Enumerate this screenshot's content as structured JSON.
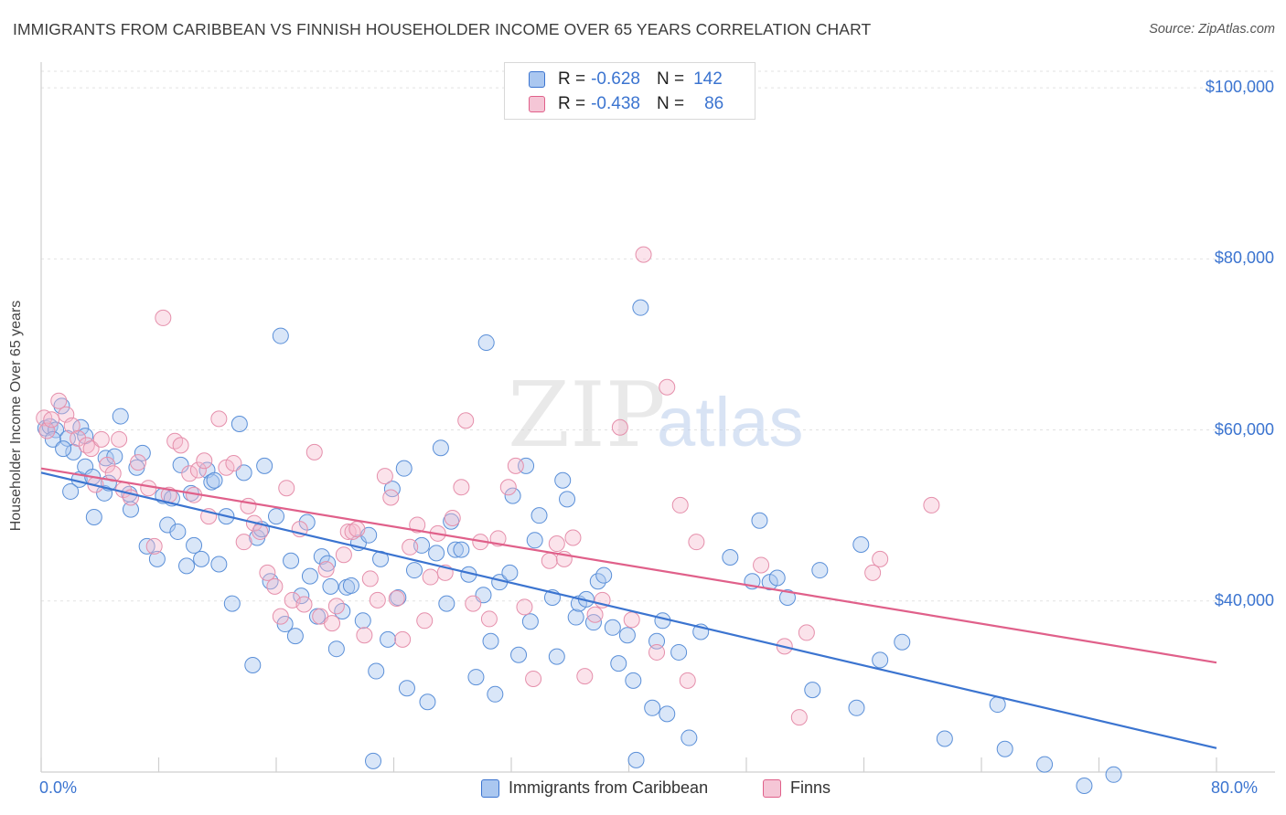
{
  "title": "IMMIGRANTS FROM CARIBBEAN VS FINNISH HOUSEHOLDER INCOME OVER 65 YEARS CORRELATION CHART",
  "source": "Source: ZipAtlas.com",
  "watermark": {
    "zip": "ZIP",
    "atlas": "atlas"
  },
  "colors": {
    "blue": "#3b74d0",
    "blue_fill": "#aac7f0",
    "pink": "#e0608a",
    "pink_fill": "#f5b8cc",
    "grid": "#e0e0e0"
  },
  "legend": {
    "items": [
      {
        "r_label": "R =",
        "r_value": "-0.628",
        "n_label": "N =",
        "n_value": "142"
      },
      {
        "r_label": "R =",
        "r_value": "-0.438",
        "n_label": "N =",
        "n_value": "86"
      }
    ]
  },
  "bottom_legend": [
    "Immigrants from Caribbean",
    "Finns"
  ],
  "chart_data": {
    "type": "scatter",
    "title": "IMMIGRANTS FROM CARIBBEAN VS FINNISH HOUSEHOLDER INCOME OVER 65 YEARS CORRELATION CHART",
    "xlabel": "",
    "ylabel": "Householder Income Over 65 years",
    "xlim": [
      0,
      80
    ],
    "ylim": [
      20000,
      103000
    ],
    "x_tick_labels": [
      "0.0%",
      "80.0%"
    ],
    "y_ticks": [
      40000,
      60000,
      80000,
      100000
    ],
    "y_tick_labels": [
      "$40,000",
      "$60,000",
      "$80,000",
      "$100,000"
    ],
    "grid": true,
    "series": [
      {
        "name": "Immigrants from Caribbean",
        "color": "#3b74d0",
        "trend": {
          "x": [
            0,
            80
          ],
          "y": [
            55000,
            22800
          ]
        },
        "points": [
          [
            0.3,
            60200
          ],
          [
            0.6,
            60400
          ],
          [
            1.0,
            60000
          ],
          [
            1.4,
            62800
          ],
          [
            1.8,
            59000
          ],
          [
            2.2,
            57400
          ],
          [
            2.7,
            60300
          ],
          [
            3.0,
            59300
          ],
          [
            0.8,
            58900
          ],
          [
            1.5,
            57800
          ],
          [
            2.6,
            54200
          ],
          [
            3.0,
            55700
          ],
          [
            3.5,
            54500
          ],
          [
            2.0,
            52800
          ],
          [
            3.6,
            49800
          ],
          [
            4.3,
            52600
          ],
          [
            4.4,
            56700
          ],
          [
            4.6,
            53800
          ],
          [
            5.0,
            56900
          ],
          [
            5.4,
            61600
          ],
          [
            6.0,
            52500
          ],
          [
            6.1,
            50700
          ],
          [
            6.5,
            55600
          ],
          [
            6.9,
            57300
          ],
          [
            7.2,
            46400
          ],
          [
            7.9,
            44900
          ],
          [
            8.3,
            52300
          ],
          [
            8.6,
            48900
          ],
          [
            8.9,
            52000
          ],
          [
            9.3,
            48100
          ],
          [
            9.5,
            55900
          ],
          [
            9.9,
            44100
          ],
          [
            10.2,
            52600
          ],
          [
            10.4,
            46500
          ],
          [
            10.9,
            44900
          ],
          [
            11.3,
            55300
          ],
          [
            11.6,
            53900
          ],
          [
            11.8,
            54100
          ],
          [
            12.1,
            44300
          ],
          [
            12.6,
            49900
          ],
          [
            13.0,
            39700
          ],
          [
            13.5,
            60700
          ],
          [
            13.8,
            55000
          ],
          [
            14.4,
            32500
          ],
          [
            14.7,
            47400
          ],
          [
            15.0,
            48400
          ],
          [
            15.2,
            55800
          ],
          [
            15.6,
            42300
          ],
          [
            16.0,
            49900
          ],
          [
            16.3,
            71000
          ],
          [
            16.6,
            37300
          ],
          [
            17.0,
            44700
          ],
          [
            17.3,
            35900
          ],
          [
            17.7,
            40600
          ],
          [
            18.1,
            49200
          ],
          [
            18.3,
            42900
          ],
          [
            18.8,
            38200
          ],
          [
            19.1,
            45200
          ],
          [
            19.5,
            44400
          ],
          [
            19.7,
            41700
          ],
          [
            20.1,
            34400
          ],
          [
            20.5,
            38800
          ],
          [
            20.8,
            41600
          ],
          [
            21.1,
            41800
          ],
          [
            21.6,
            46800
          ],
          [
            21.9,
            37700
          ],
          [
            22.3,
            47700
          ],
          [
            22.6,
            21300
          ],
          [
            22.8,
            31800
          ],
          [
            23.1,
            44900
          ],
          [
            23.6,
            35500
          ],
          [
            23.9,
            53100
          ],
          [
            24.3,
            40400
          ],
          [
            24.7,
            55500
          ],
          [
            24.9,
            29800
          ],
          [
            25.4,
            43600
          ],
          [
            25.9,
            46500
          ],
          [
            26.3,
            28200
          ],
          [
            26.9,
            45600
          ],
          [
            27.2,
            57900
          ],
          [
            27.6,
            39700
          ],
          [
            27.9,
            49300
          ],
          [
            28.2,
            46000
          ],
          [
            28.6,
            46000
          ],
          [
            29.1,
            43100
          ],
          [
            29.6,
            31100
          ],
          [
            30.1,
            40700
          ],
          [
            30.3,
            70200
          ],
          [
            30.6,
            35300
          ],
          [
            30.9,
            29100
          ],
          [
            31.2,
            42200
          ],
          [
            31.9,
            43300
          ],
          [
            32.1,
            52300
          ],
          [
            32.5,
            33700
          ],
          [
            33.0,
            55800
          ],
          [
            33.3,
            37600
          ],
          [
            33.6,
            47100
          ],
          [
            33.9,
            50000
          ],
          [
            34.8,
            40400
          ],
          [
            35.1,
            33500
          ],
          [
            35.5,
            54100
          ],
          [
            35.8,
            51900
          ],
          [
            36.4,
            38100
          ],
          [
            36.6,
            39700
          ],
          [
            37.1,
            40200
          ],
          [
            37.6,
            37500
          ],
          [
            37.9,
            42300
          ],
          [
            38.3,
            43000
          ],
          [
            38.9,
            36900
          ],
          [
            39.3,
            32700
          ],
          [
            39.9,
            36000
          ],
          [
            40.3,
            30700
          ],
          [
            40.5,
            21400
          ],
          [
            40.8,
            74300
          ],
          [
            41.6,
            27500
          ],
          [
            41.9,
            35300
          ],
          [
            42.3,
            37700
          ],
          [
            42.6,
            26800
          ],
          [
            43.4,
            34000
          ],
          [
            44.1,
            24000
          ],
          [
            44.9,
            36400
          ],
          [
            46.9,
            45100
          ],
          [
            48.4,
            42300
          ],
          [
            48.9,
            49400
          ],
          [
            49.6,
            42200
          ],
          [
            50.1,
            42700
          ],
          [
            50.8,
            40400
          ],
          [
            52.5,
            29600
          ],
          [
            53.0,
            43600
          ],
          [
            55.5,
            27500
          ],
          [
            55.8,
            46600
          ],
          [
            57.1,
            33100
          ],
          [
            58.6,
            35200
          ],
          [
            61.5,
            23900
          ],
          [
            65.1,
            27900
          ],
          [
            65.6,
            22700
          ],
          [
            68.3,
            20900
          ],
          [
            71.0,
            18400
          ],
          [
            73.0,
            19700
          ]
        ]
      },
      {
        "name": "Finns",
        "color": "#e0608a",
        "trend": {
          "x": [
            0,
            80
          ],
          "y": [
            55500,
            32800
          ]
        },
        "points": [
          [
            0.2,
            61400
          ],
          [
            0.4,
            59900
          ],
          [
            0.7,
            61200
          ],
          [
            1.2,
            63400
          ],
          [
            1.7,
            61800
          ],
          [
            2.1,
            60500
          ],
          [
            2.5,
            59000
          ],
          [
            3.1,
            58200
          ],
          [
            3.4,
            57800
          ],
          [
            4.1,
            58900
          ],
          [
            4.5,
            55900
          ],
          [
            3.7,
            53600
          ],
          [
            4.9,
            54900
          ],
          [
            5.3,
            58900
          ],
          [
            5.6,
            53000
          ],
          [
            6.1,
            52100
          ],
          [
            6.6,
            56200
          ],
          [
            7.3,
            53200
          ],
          [
            7.7,
            46400
          ],
          [
            8.3,
            73100
          ],
          [
            8.7,
            52400
          ],
          [
            9.1,
            58700
          ],
          [
            9.5,
            58200
          ],
          [
            10.1,
            54900
          ],
          [
            10.4,
            52400
          ],
          [
            10.7,
            55300
          ],
          [
            11.1,
            56400
          ],
          [
            11.4,
            49900
          ],
          [
            12.1,
            61300
          ],
          [
            12.6,
            55600
          ],
          [
            13.1,
            56100
          ],
          [
            13.8,
            46900
          ],
          [
            14.1,
            51100
          ],
          [
            14.5,
            49100
          ],
          [
            14.9,
            48100
          ],
          [
            15.4,
            43300
          ],
          [
            15.9,
            41700
          ],
          [
            16.3,
            38200
          ],
          [
            16.7,
            53200
          ],
          [
            17.1,
            40100
          ],
          [
            17.6,
            48400
          ],
          [
            17.9,
            39600
          ],
          [
            18.6,
            57400
          ],
          [
            19.0,
            38200
          ],
          [
            19.4,
            43700
          ],
          [
            19.8,
            37400
          ],
          [
            20.1,
            39400
          ],
          [
            20.6,
            45400
          ],
          [
            20.9,
            48100
          ],
          [
            21.2,
            48100
          ],
          [
            21.5,
            48400
          ],
          [
            22.0,
            36000
          ],
          [
            22.4,
            42600
          ],
          [
            22.9,
            40100
          ],
          [
            23.4,
            54600
          ],
          [
            23.8,
            52100
          ],
          [
            24.2,
            40300
          ],
          [
            24.6,
            35500
          ],
          [
            25.1,
            46300
          ],
          [
            25.6,
            48900
          ],
          [
            26.1,
            37700
          ],
          [
            26.5,
            42800
          ],
          [
            27.0,
            47900
          ],
          [
            27.5,
            43300
          ],
          [
            28.0,
            49700
          ],
          [
            28.6,
            53300
          ],
          [
            28.9,
            61100
          ],
          [
            29.4,
            39700
          ],
          [
            29.9,
            46900
          ],
          [
            30.5,
            37900
          ],
          [
            31.1,
            47300
          ],
          [
            31.8,
            53300
          ],
          [
            32.3,
            55800
          ],
          [
            32.9,
            39300
          ],
          [
            33.5,
            30900
          ],
          [
            34.6,
            44700
          ],
          [
            35.1,
            46700
          ],
          [
            35.6,
            44900
          ],
          [
            36.2,
            47400
          ],
          [
            37.0,
            31200
          ],
          [
            37.7,
            38400
          ],
          [
            38.2,
            40100
          ],
          [
            39.4,
            60300
          ],
          [
            40.2,
            37800
          ],
          [
            41.0,
            80500
          ],
          [
            41.9,
            34000
          ],
          [
            42.6,
            65000
          ],
          [
            43.5,
            51200
          ],
          [
            44.0,
            30700
          ],
          [
            44.6,
            46900
          ],
          [
            49.0,
            44200
          ],
          [
            50.6,
            34700
          ],
          [
            51.6,
            26400
          ],
          [
            52.1,
            36300
          ],
          [
            56.6,
            43300
          ],
          [
            57.1,
            44900
          ],
          [
            60.6,
            51200
          ]
        ]
      }
    ]
  }
}
